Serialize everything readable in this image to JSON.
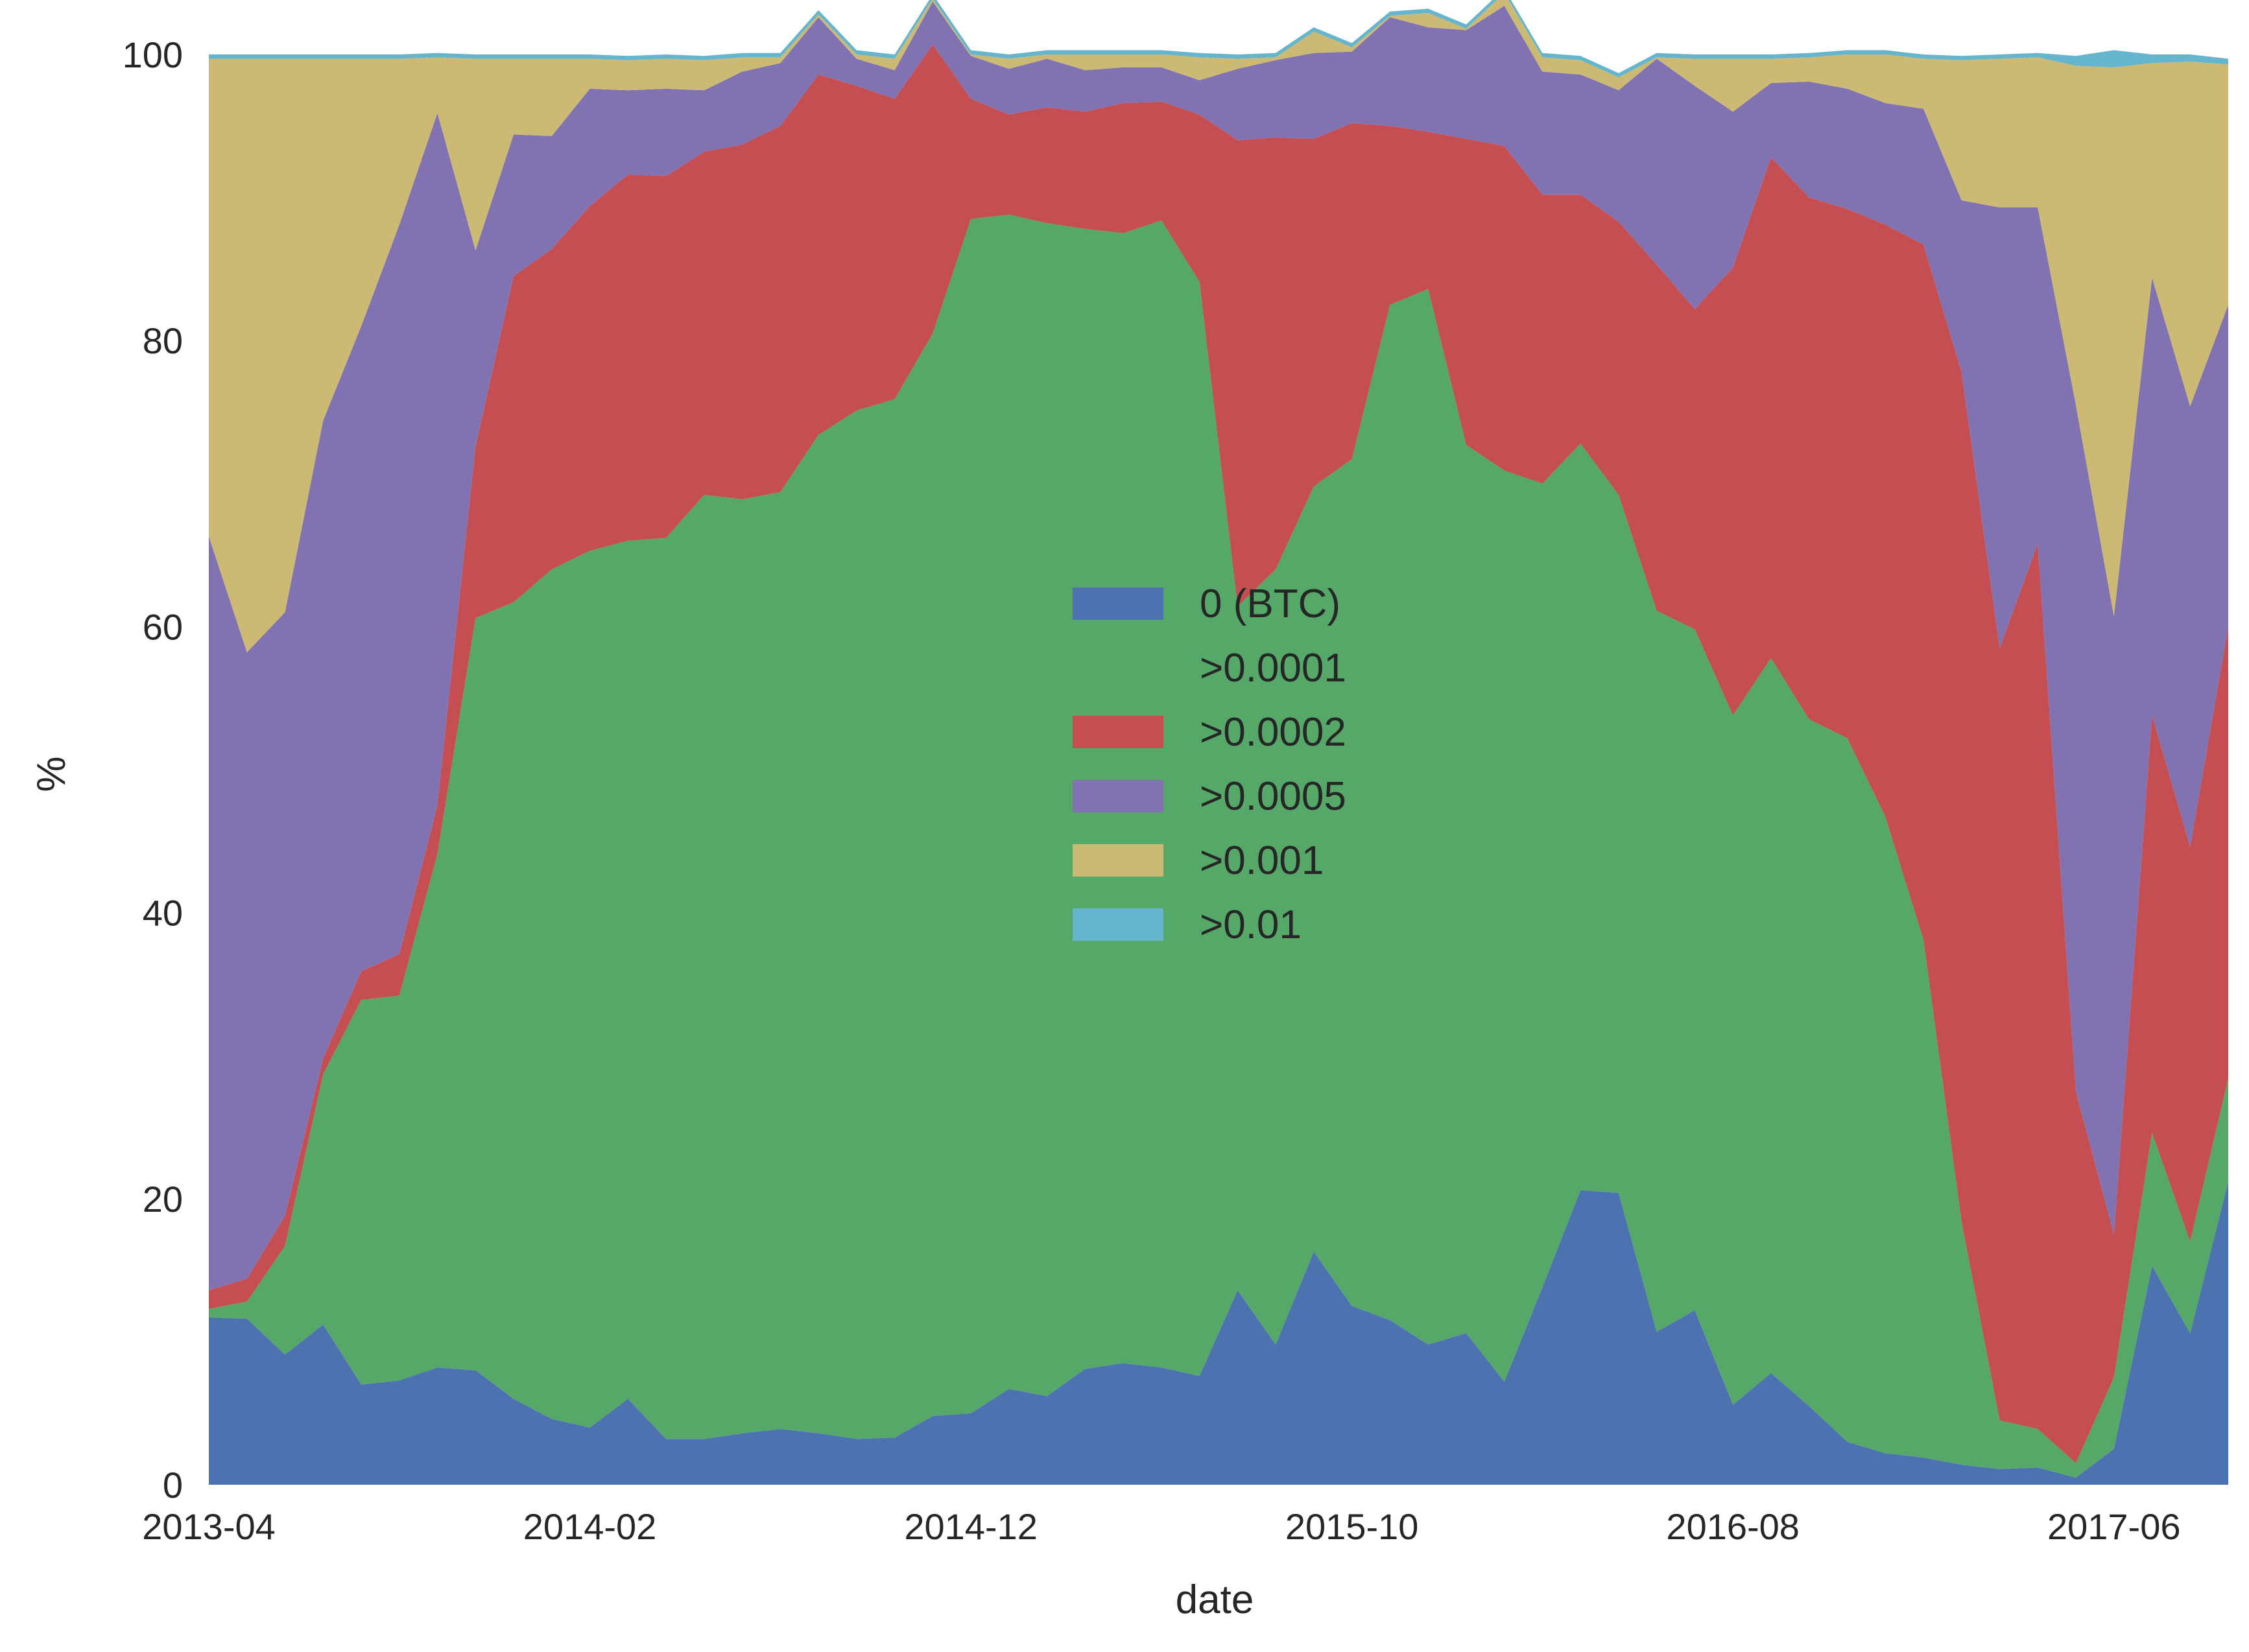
{
  "chart_data": {
    "type": "area",
    "stacked": true,
    "xlabel": "date",
    "ylabel": "%",
    "ylim": [
      0,
      100
    ],
    "yticks": [
      0,
      20,
      40,
      60,
      80,
      100
    ],
    "xticks": [
      "2013-04",
      "2014-02",
      "2014-12",
      "2015-10",
      "2016-08",
      "2017-06"
    ],
    "grid": false,
    "legend_position": "center",
    "x": [
      "2013-04",
      "2013-05",
      "2013-06",
      "2013-07",
      "2013-08",
      "2013-09",
      "2013-10",
      "2013-11",
      "2013-12",
      "2014-01",
      "2014-02",
      "2014-03",
      "2014-04",
      "2014-05",
      "2014-06",
      "2014-07",
      "2014-08",
      "2014-09",
      "2014-10",
      "2014-11",
      "2014-12",
      "2015-01",
      "2015-02",
      "2015-03",
      "2015-04",
      "2015-05",
      "2015-06",
      "2015-07",
      "2015-08",
      "2015-09",
      "2015-10",
      "2015-11",
      "2015-12",
      "2016-01",
      "2016-02",
      "2016-03",
      "2016-04",
      "2016-05",
      "2016-06",
      "2016-07",
      "2016-08",
      "2016-09",
      "2016-10",
      "2016-11",
      "2016-12",
      "2017-01",
      "2017-02",
      "2017-03",
      "2017-04",
      "2017-05",
      "2017-06",
      "2017-07",
      "2017-08",
      "2017-09"
    ],
    "series": [
      {
        "name": "0 (BTC)",
        "color": "#4c72b0",
        "values": [
          11.7,
          11.6,
          9.1,
          11.2,
          7.0,
          7.3,
          8.2,
          8.0,
          6.0,
          4.6,
          4.0,
          6.0,
          3.2,
          3.2,
          3.6,
          3.9,
          3.6,
          3.2,
          3.3,
          4.8,
          5.0,
          6.7,
          6.2,
          8.1,
          8.5,
          8.2,
          7.6,
          13.6,
          9.8,
          16.3,
          12.5,
          11.5,
          9.8,
          10.6,
          7.2,
          13.8,
          20.6,
          20.4,
          10.7,
          12.2,
          5.6,
          7.8,
          5.5,
          3.0,
          2.2,
          1.9,
          1.4,
          1.1,
          1.2,
          0.5,
          2.5,
          15.3,
          10.6,
          21.2
        ]
      },
      {
        "name": ">0.0001",
        "color": "#55a868",
        "values": [
          0.6,
          1.2,
          7.6,
          17.5,
          26.9,
          26.9,
          35.9,
          52.6,
          55.7,
          59.4,
          61.3,
          60.0,
          63.0,
          66.0,
          65.3,
          65.5,
          69.8,
          71.9,
          72.6,
          75.7,
          83.5,
          82.1,
          82.0,
          79.7,
          79.0,
          80.2,
          76.5,
          47.8,
          54.2,
          53.5,
          59.2,
          71.0,
          73.8,
          62.1,
          63.7,
          56.2,
          52.2,
          48.8,
          50.4,
          47.6,
          48.2,
          50.0,
          48.0,
          49.2,
          44.5,
          36.2,
          17.0,
          3.4,
          2.7,
          1.0,
          5.0,
          9.3,
          6.4,
          7.2
        ]
      },
      {
        "name": ">0.0002",
        "color": "#c44e52",
        "values": [
          1.3,
          1.6,
          2.1,
          1.1,
          2.0,
          2.9,
          3.4,
          12.0,
          22.8,
          22.4,
          24.1,
          25.6,
          25.3,
          24.0,
          24.8,
          25.6,
          25.2,
          22.7,
          21.0,
          20.2,
          8.4,
          7.0,
          8.1,
          8.2,
          9.1,
          8.3,
          11.7,
          32.6,
          30.2,
          24.3,
          23.5,
          12.5,
          11.0,
          21.4,
          22.7,
          20.2,
          17.4,
          19.1,
          24.2,
          22.4,
          31.3,
          35.0,
          36.5,
          37.0,
          41.4,
          48.6,
          59.4,
          54.0,
          61.9,
          26.0,
          10.0,
          29.2,
          27.6,
          31.6
        ]
      },
      {
        "name": ">0.0005",
        "color": "#8172b2",
        "values": [
          52.7,
          43.8,
          42.2,
          44.6,
          45.1,
          51.0,
          48.4,
          13.7,
          9.9,
          7.9,
          8.2,
          5.9,
          6.1,
          4.3,
          5.1,
          4.4,
          4.0,
          1.9,
          2.0,
          3.0,
          3.0,
          3.2,
          3.4,
          2.9,
          2.5,
          2.4,
          2.4,
          5.0,
          5.4,
          6.0,
          5.0,
          7.6,
          7.3,
          7.6,
          9.8,
          8.6,
          8.4,
          9.2,
          14.4,
          15.6,
          10.9,
          5.2,
          8.1,
          8.4,
          8.5,
          9.5,
          12.0,
          30.8,
          23.5,
          48.0,
          43.2,
          30.6,
          30.8,
          22.5
        ]
      },
      {
        "name": ">0.001",
        "color": "#ccb974",
        "values": [
          33.4,
          41.5,
          38.7,
          25.3,
          18.7,
          11.6,
          3.9,
          13.4,
          5.3,
          5.4,
          2.1,
          2.1,
          2.1,
          2.1,
          1.0,
          0.4,
          0.2,
          0.3,
          0.8,
          0.2,
          0.1,
          0.7,
          0.3,
          1.1,
          0.9,
          0.9,
          1.6,
          0.7,
          0.2,
          1.5,
          0.3,
          0.1,
          1.0,
          0.1,
          0.9,
          1.0,
          1.0,
          0.9,
          0.1,
          1.9,
          3.7,
          1.7,
          1.7,
          2.4,
          3.4,
          3.5,
          9.8,
          10.4,
          10.5,
          23.7,
          38.4,
          15.0,
          24.1,
          16.8
        ]
      },
      {
        "name": ">0.01",
        "color": "#64b5cd",
        "values": [
          0.3,
          0.3,
          0.3,
          0.3,
          0.3,
          0.3,
          0.3,
          0.3,
          0.3,
          0.3,
          0.3,
          0.3,
          0.3,
          0.3,
          0.3,
          0.3,
          0.3,
          0.3,
          0.3,
          0.3,
          0.3,
          0.3,
          0.3,
          0.3,
          0.3,
          0.3,
          0.3,
          0.3,
          0.3,
          0.3,
          0.3,
          0.3,
          0.3,
          0.3,
          0.3,
          0.3,
          0.3,
          0.3,
          0.3,
          0.3,
          0.3,
          0.3,
          0.3,
          0.3,
          0.3,
          0.3,
          0.3,
          0.3,
          0.3,
          0.7,
          1.2,
          0.6,
          0.5,
          0.4
        ]
      }
    ]
  }
}
